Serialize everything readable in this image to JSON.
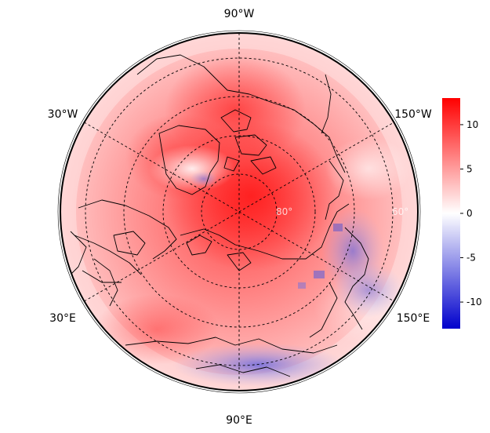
{
  "map": {
    "meridian_labels": {
      "top": "90°W",
      "upper_left": "30°W",
      "upper_right": "150°W",
      "lower_left": "30°E",
      "lower_right": "150°E",
      "bottom": "90°E"
    },
    "parallel_labels": [
      "80°",
      "60°"
    ],
    "colorbar": {
      "ticks": [
        "10",
        "5",
        "0",
        "-5",
        "-10"
      ],
      "tick_values": [
        10,
        5,
        0,
        -5,
        -10
      ],
      "min": -13,
      "max": 13,
      "colors": [
        "#0000cc",
        "#ffffff",
        "#ff0000"
      ]
    },
    "colors": {
      "warm": "#ff2020",
      "cool": "#4040dd",
      "neutral": "#ffffff",
      "coast": "#000000"
    }
  }
}
